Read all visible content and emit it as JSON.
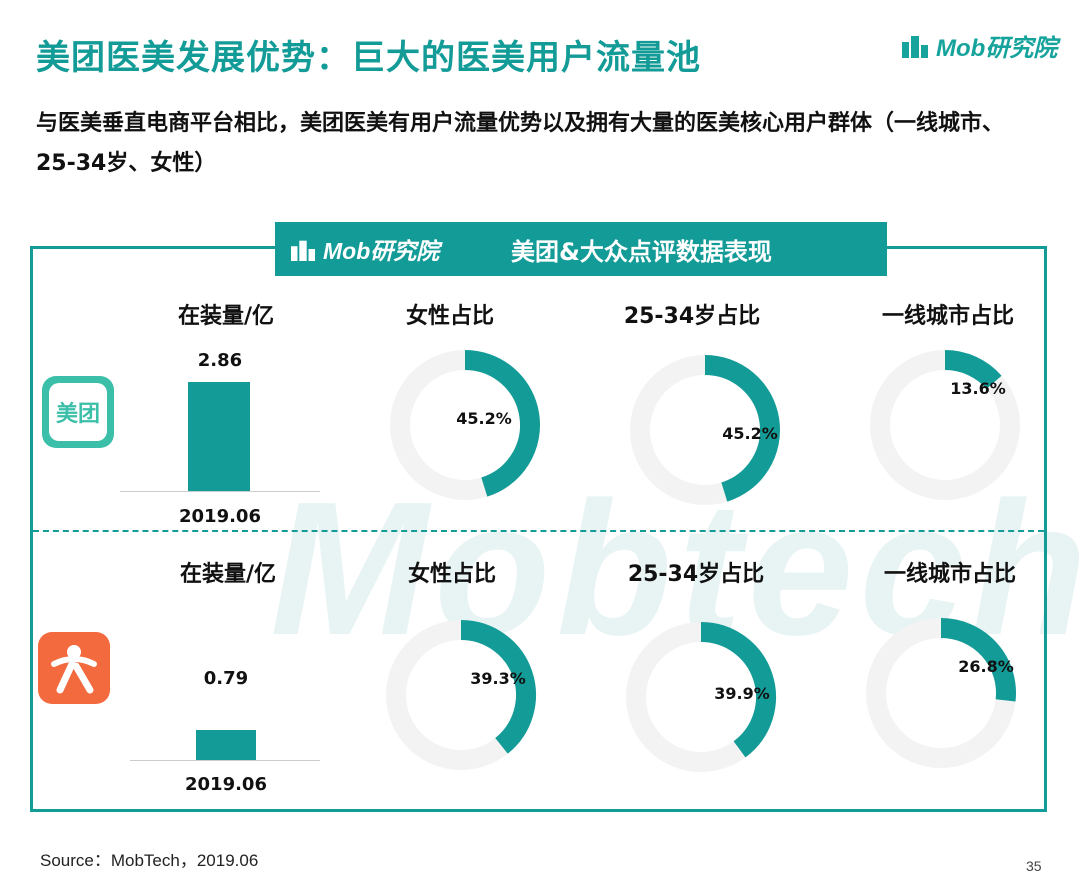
{
  "header": {
    "title": "美团医美发展优势：巨大的医美用户流量池",
    "subtitle": "与医美垂直电商平台相比，美团医美有用户流量优势以及拥有大量的医美核心用户群体（一线城市、25-34岁、女性）",
    "brand": "Mob研究院"
  },
  "panel": {
    "banner_logo": "Mob研究院",
    "banner_title": "美团&大众点评数据表现",
    "watermark": "Mobtech"
  },
  "apps": {
    "meituan_icon_text": "美团",
    "accent": "#139b97"
  },
  "chart_data": [
    {
      "type": "bar",
      "app": "美团",
      "title": "在装量/亿",
      "categories": [
        "2019.06"
      ],
      "values": [
        2.86
      ],
      "data_labels": [
        "2.86"
      ]
    },
    {
      "type": "pie",
      "app": "美团",
      "title": "女性占比",
      "values": [
        45.2
      ],
      "data_labels": [
        "45.2%"
      ]
    },
    {
      "type": "pie",
      "app": "美团",
      "title": "25-34岁占比",
      "values": [
        45.2
      ],
      "data_labels": [
        "45.2%"
      ]
    },
    {
      "type": "pie",
      "app": "美团",
      "title": "一线城市占比",
      "values": [
        13.6
      ],
      "data_labels": [
        "13.6%"
      ]
    },
    {
      "type": "bar",
      "app": "大众点评",
      "title": "在装量/亿",
      "categories": [
        "2019.06"
      ],
      "values": [
        0.79
      ],
      "data_labels": [
        "0.79"
      ]
    },
    {
      "type": "pie",
      "app": "大众点评",
      "title": "女性占比",
      "values": [
        39.3
      ],
      "data_labels": [
        "39.3%"
      ]
    },
    {
      "type": "pie",
      "app": "大众点评",
      "title": "25-34岁占比",
      "values": [
        39.9
      ],
      "data_labels": [
        "39.9%"
      ]
    },
    {
      "type": "pie",
      "app": "大众点评",
      "title": "一线城市占比",
      "values": [
        26.8
      ],
      "data_labels": [
        "26.8%"
      ]
    }
  ],
  "footer": {
    "source": "Source：MobTech，2019.06",
    "page": "35"
  }
}
